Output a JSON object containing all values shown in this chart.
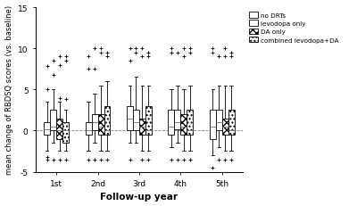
{
  "title": "",
  "xlabel": "Follow-up year",
  "ylabel": "mean change of RBDSQ scores (vs. baseline)",
  "ylim": [
    -5,
    15
  ],
  "yticks": [
    -5,
    0,
    5,
    10,
    15
  ],
  "groups": [
    "1st",
    "2nd",
    "3rd",
    "4th",
    "5th"
  ],
  "group_positions": [
    1,
    2,
    3,
    4,
    5
  ],
  "box_width": 0.15,
  "subgroup_offsets": [
    -0.225,
    -0.075,
    0.075,
    0.225
  ],
  "legend_labels": [
    "no DRTs",
    "levodopa only",
    "DA only",
    "combined levodopa+DA"
  ],
  "hatch_patterns": [
    "",
    "====",
    "xxxx",
    "...."
  ],
  "facecolors": [
    "white",
    "white",
    "black",
    "white"
  ],
  "edgecolors": [
    "black",
    "black",
    "black",
    "black"
  ],
  "median_color": "gray",
  "whisker_color": "black",
  "flier_marker": "+",
  "background_color": "white",
  "font_size": 6.5,
  "boxes": {
    "1st": [
      {
        "q1": -0.5,
        "med": 0.2,
        "q3": 1.0,
        "whislo": -2.5,
        "whishi": 3.5,
        "fliers": [
          -3.2,
          5.0,
          7.8,
          -3.5
        ]
      },
      {
        "q1": 0.0,
        "med": 0.5,
        "q3": 2.5,
        "whislo": -1.5,
        "whishi": 5.0,
        "fliers": [
          6.8,
          8.5,
          -3.5
        ]
      },
      {
        "q1": -1.0,
        "med": 0.0,
        "q3": 1.5,
        "whislo": -2.5,
        "whishi": 3.5,
        "fliers": [
          -3.5,
          4.0,
          8.0,
          9.0
        ]
      },
      {
        "q1": -1.5,
        "med": 0.0,
        "q3": 1.0,
        "whislo": -2.5,
        "whishi": 2.5,
        "fliers": [
          -3.5,
          3.8,
          8.5,
          9.0
        ]
      }
    ],
    "2nd": [
      {
        "q1": -0.5,
        "med": 0.0,
        "q3": 1.0,
        "whislo": -2.5,
        "whishi": 3.5,
        "fliers": [
          -3.5,
          7.5,
          9.0
        ]
      },
      {
        "q1": 0.0,
        "med": 1.0,
        "q3": 2.0,
        "whislo": -1.5,
        "whishi": 4.5,
        "fliers": [
          7.5,
          -3.5,
          10.0
        ]
      },
      {
        "q1": -0.5,
        "med": 0.5,
        "q3": 2.0,
        "whislo": -2.5,
        "whishi": 5.5,
        "fliers": [
          -3.5,
          9.5,
          10.0
        ]
      },
      {
        "q1": -0.5,
        "med": 0.0,
        "q3": 3.0,
        "whislo": -2.5,
        "whishi": 6.0,
        "fliers": [
          -3.5,
          9.0,
          9.5
        ]
      }
    ],
    "3rd": [
      {
        "q1": 0.0,
        "med": 1.5,
        "q3": 3.0,
        "whislo": -1.5,
        "whishi": 5.5,
        "fliers": [
          -3.5,
          8.5,
          10.0
        ]
      },
      {
        "q1": 0.0,
        "med": 1.0,
        "q3": 2.5,
        "whislo": -1.5,
        "whishi": 6.5,
        "fliers": [
          9.5,
          10.0
        ]
      },
      {
        "q1": -0.5,
        "med": 0.5,
        "q3": 1.5,
        "whislo": -2.5,
        "whishi": 5.5,
        "fliers": [
          -3.5,
          9.0,
          10.0
        ]
      },
      {
        "q1": -0.5,
        "med": 0.0,
        "q3": 3.0,
        "whislo": -2.5,
        "whishi": 5.5,
        "fliers": [
          -3.5,
          9.0,
          9.5
        ]
      }
    ],
    "4th": [
      {
        "q1": -0.5,
        "med": 0.5,
        "q3": 2.5,
        "whislo": -2.0,
        "whishi": 5.0,
        "fliers": [
          -3.5,
          9.5,
          10.0
        ]
      },
      {
        "q1": 0.2,
        "med": 1.0,
        "q3": 2.5,
        "whislo": -1.5,
        "whishi": 5.5,
        "fliers": [
          9.5,
          -3.5
        ]
      },
      {
        "q1": -0.5,
        "med": 0.5,
        "q3": 2.0,
        "whislo": -2.5,
        "whishi": 5.0,
        "fliers": [
          -3.5,
          9.0,
          10.0
        ]
      },
      {
        "q1": -0.5,
        "med": 0.0,
        "q3": 2.5,
        "whislo": -2.5,
        "whishi": 5.5,
        "fliers": [
          -3.5,
          9.5,
          10.0
        ]
      }
    ],
    "5th": [
      {
        "q1": -1.0,
        "med": 0.5,
        "q3": 2.5,
        "whislo": -3.0,
        "whishi": 5.0,
        "fliers": [
          -4.5,
          9.5,
          10.0
        ]
      },
      {
        "q1": 0.0,
        "med": 1.0,
        "q3": 2.5,
        "whislo": -2.0,
        "whishi": 5.5,
        "fliers": [
          9.0,
          -3.5
        ]
      },
      {
        "q1": -0.5,
        "med": 0.5,
        "q3": 1.5,
        "whislo": -2.5,
        "whishi": 5.5,
        "fliers": [
          -3.5,
          9.0,
          10.0
        ]
      },
      {
        "q1": -0.5,
        "med": 0.0,
        "q3": 2.5,
        "whislo": -2.5,
        "whishi": 5.5,
        "fliers": [
          -3.5,
          9.0,
          9.5
        ]
      }
    ]
  }
}
